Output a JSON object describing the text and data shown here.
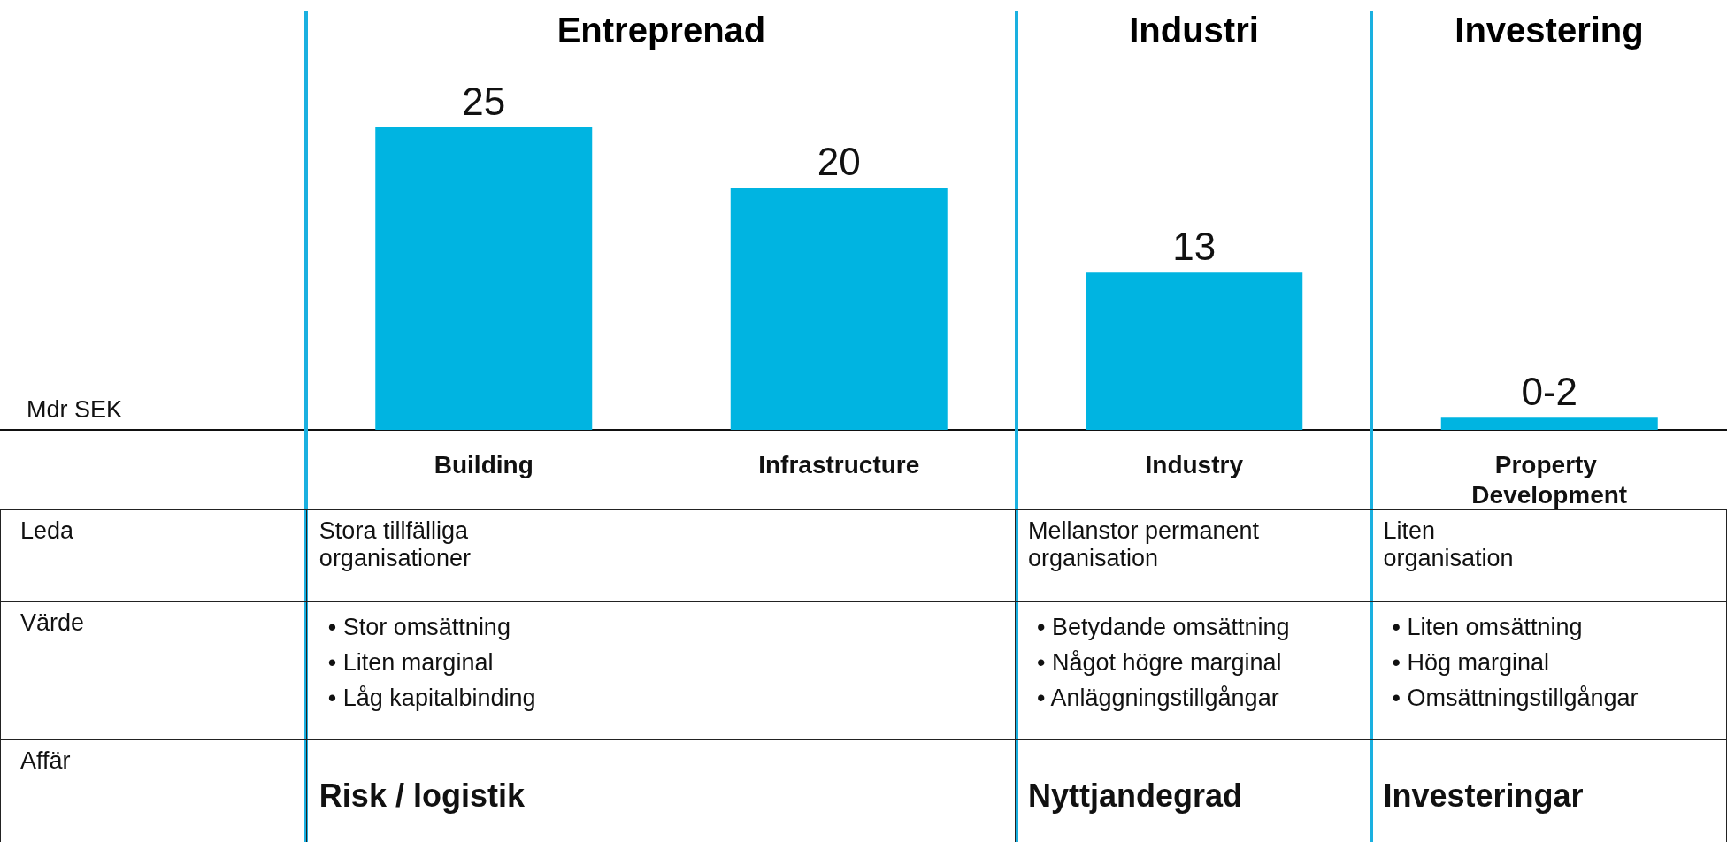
{
  "chart_data": {
    "type": "bar",
    "categories": [
      "Building",
      "Infrastructure",
      "Industry",
      "Property Development"
    ],
    "values": [
      25,
      20,
      13,
      1
    ],
    "value_labels": [
      "25",
      "20",
      "13",
      "0-2"
    ],
    "color": "#00b4e1",
    "annotations": [
      "Entreprenad",
      "Industri",
      "Investering",
      "Leda",
      "Värde",
      "Affär",
      "Stora tillfälliga organisationer",
      "Mellanstor permanent organisation",
      "Liten organisation",
      "• Stor omsättning",
      "• Liten marginal",
      "• Låg kapitalbinding",
      "• Betydande omsättning",
      "• Något högre marginal",
      "• Anläggningstillgångar",
      "• Liten omsättning",
      "• Hög marginal",
      "• Omsättningstillgångar",
      "Risk / logistik",
      "Nyttjandegrad",
      "Investeringar",
      "Mdr SEK"
    ]
  }
}
